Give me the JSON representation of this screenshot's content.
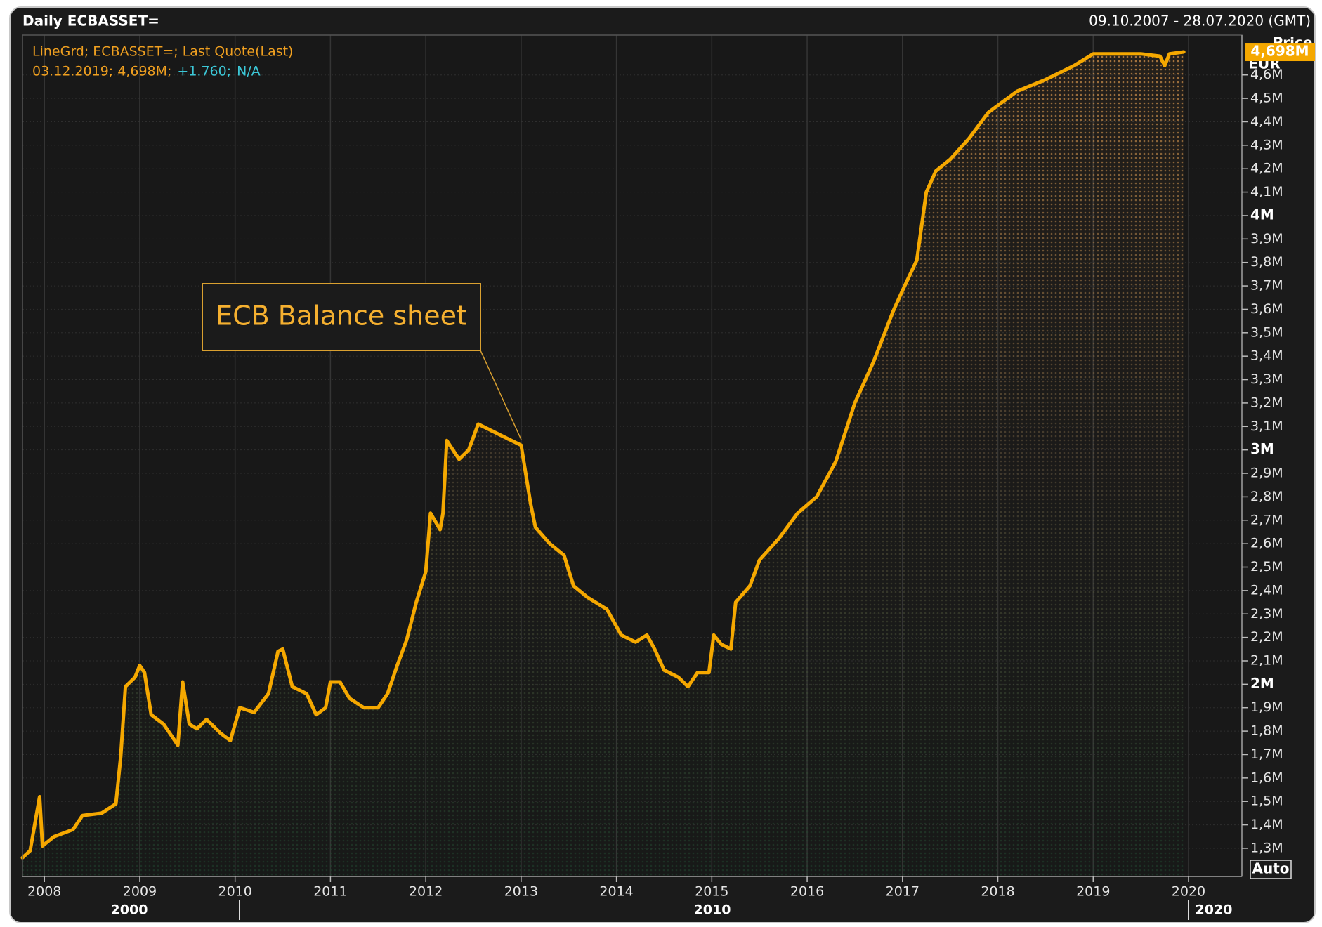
{
  "chart_data": {
    "type": "line",
    "title": "Daily ECBASSET=",
    "date_range": "09.10.2007 - 28.07.2020 (GMT)",
    "legend_lines": [
      "LineGrd; ECBASSET=; Last Quote(Last)",
      "03.12.2019; 4,698M;",
      "+1.760;",
      "N/A"
    ],
    "axis_title": "Price",
    "axis_unit": "EUR",
    "last_value_label": "4,698M",
    "scale_mode": "Auto",
    "annotation": "ECB Balance sheet",
    "decade_labels": [
      "2000",
      "2010",
      "2020"
    ],
    "grid": true,
    "series": [
      {
        "name": "ECBASSET=",
        "color": "#f5a800",
        "x": [
          2007.77,
          2007.85,
          2007.95,
          2007.98,
          2008.1,
          2008.3,
          2008.4,
          2008.6,
          2008.75,
          2008.8,
          2008.85,
          2008.95,
          2009.0,
          2009.05,
          2009.12,
          2009.25,
          2009.4,
          2009.45,
          2009.52,
          2009.6,
          2009.7,
          2009.85,
          2009.95,
          2010.05,
          2010.2,
          2010.35,
          2010.45,
          2010.5,
          2010.6,
          2010.75,
          2010.85,
          2010.95,
          2011.0,
          2011.1,
          2011.2,
          2011.35,
          2011.5,
          2011.6,
          2011.7,
          2011.8,
          2011.9,
          2012.0,
          2012.05,
          2012.15,
          2012.18,
          2012.22,
          2012.35,
          2012.45,
          2012.55,
          2012.7,
          2012.85,
          2013.0,
          2013.1,
          2013.15,
          2013.3,
          2013.45,
          2013.55,
          2013.7,
          2013.9,
          2014.05,
          2014.2,
          2014.32,
          2014.4,
          2014.5,
          2014.65,
          2014.75,
          2014.85,
          2014.97,
          2015.02,
          2015.1,
          2015.2,
          2015.25,
          2015.4,
          2015.5,
          2015.7,
          2015.9,
          2016.1,
          2016.3,
          2016.5,
          2016.7,
          2016.9,
          2017.0,
          2017.15,
          2017.25,
          2017.35,
          2017.5,
          2017.7,
          2017.9,
          2018.0,
          2018.2,
          2018.5,
          2018.8,
          2019.0,
          2019.2,
          2019.5,
          2019.7,
          2019.75,
          2019.8,
          2019.95
        ],
        "values": [
          1.26,
          1.29,
          1.52,
          1.31,
          1.35,
          1.38,
          1.44,
          1.45,
          1.49,
          1.69,
          1.99,
          2.03,
          2.08,
          2.05,
          1.87,
          1.83,
          1.74,
          2.01,
          1.83,
          1.81,
          1.85,
          1.79,
          1.76,
          1.9,
          1.88,
          1.96,
          2.14,
          2.15,
          1.99,
          1.96,
          1.87,
          1.9,
          2.01,
          2.01,
          1.94,
          1.9,
          1.9,
          1.96,
          2.08,
          2.19,
          2.35,
          2.48,
          2.73,
          2.66,
          2.73,
          3.04,
          2.96,
          3.0,
          3.11,
          3.08,
          3.05,
          3.02,
          2.77,
          2.67,
          2.6,
          2.55,
          2.42,
          2.37,
          2.32,
          2.21,
          2.18,
          2.21,
          2.15,
          2.06,
          2.03,
          1.99,
          2.05,
          2.05,
          2.21,
          2.17,
          2.15,
          2.35,
          2.42,
          2.53,
          2.62,
          2.73,
          2.8,
          2.95,
          3.2,
          3.38,
          3.59,
          3.68,
          3.81,
          4.1,
          4.19,
          4.24,
          4.33,
          4.44,
          4.47,
          4.53,
          4.58,
          4.64,
          4.69,
          4.69,
          4.69,
          4.68,
          4.64,
          4.69,
          4.698
        ]
      }
    ],
    "xlim": [
      2007.77,
      2020.56
    ],
    "xticks": [
      2008,
      2009,
      2010,
      2011,
      2012,
      2013,
      2014,
      2015,
      2016,
      2017,
      2018,
      2019,
      2020
    ],
    "ylim": [
      1.18,
      4.77
    ],
    "yticks": [
      {
        "value": 1.3,
        "label": "1,3M"
      },
      {
        "value": 1.4,
        "label": "1,4M"
      },
      {
        "value": 1.5,
        "label": "1,5M"
      },
      {
        "value": 1.6,
        "label": "1,6M"
      },
      {
        "value": 1.7,
        "label": "1,7M"
      },
      {
        "value": 1.8,
        "label": "1,8M"
      },
      {
        "value": 1.9,
        "label": "1,9M"
      },
      {
        "value": 2,
        "label": "2M"
      },
      {
        "value": 2.1,
        "label": "2,1M"
      },
      {
        "value": 2.2,
        "label": "2,2M"
      },
      {
        "value": 2.3,
        "label": "2,3M"
      },
      {
        "value": 2.4,
        "label": "2,4M"
      },
      {
        "value": 2.5,
        "label": "2,5M"
      },
      {
        "value": 2.6,
        "label": "2,6M"
      },
      {
        "value": 2.7,
        "label": "2,7M"
      },
      {
        "value": 2.8,
        "label": "2,8M"
      },
      {
        "value": 2.9,
        "label": "2,9M"
      },
      {
        "value": 3,
        "label": "3M"
      },
      {
        "value": 3.1,
        "label": "3,1M"
      },
      {
        "value": 3.2,
        "label": "3,2M"
      },
      {
        "value": 3.3,
        "label": "3,3M"
      },
      {
        "value": 3.4,
        "label": "3,4M"
      },
      {
        "value": 3.5,
        "label": "3,5M"
      },
      {
        "value": 3.6,
        "label": "3,6M"
      },
      {
        "value": 3.7,
        "label": "3,7M"
      },
      {
        "value": 3.8,
        "label": "3,8M"
      },
      {
        "value": 3.9,
        "label": "3,9M"
      },
      {
        "value": 4,
        "label": "4M"
      },
      {
        "value": 4.1,
        "label": "4,1M"
      },
      {
        "value": 4.2,
        "label": "4,2M"
      },
      {
        "value": 4.3,
        "label": "4,3M"
      },
      {
        "value": 4.4,
        "label": "4,4M"
      },
      {
        "value": 4.5,
        "label": "4,5M"
      },
      {
        "value": 4.6,
        "label": "4,6M"
      }
    ]
  }
}
